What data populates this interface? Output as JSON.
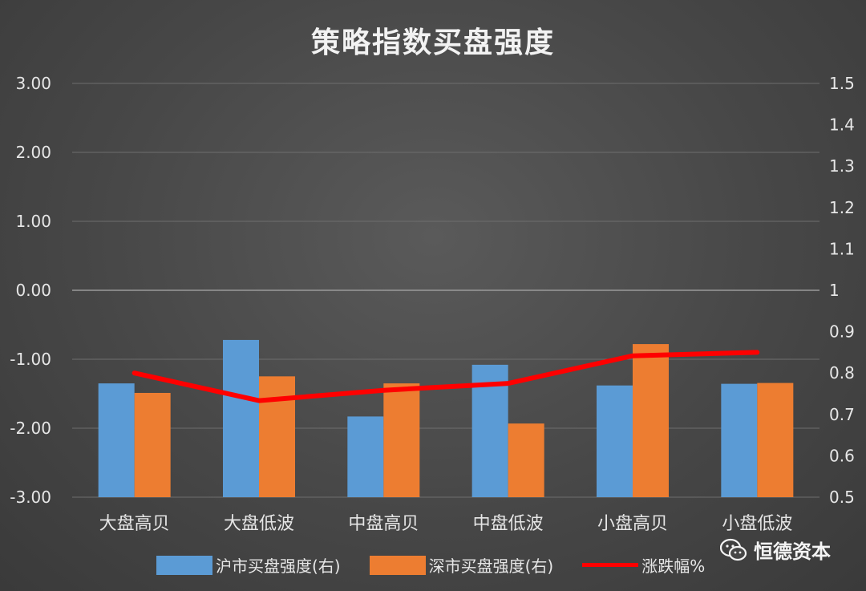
{
  "chart_data": {
    "type": "bar",
    "title": "策略指数买盘强度",
    "categories": [
      "大盘高贝",
      "大盘低波",
      "中盘高贝",
      "中盘低波",
      "小盘高贝",
      "小盘低波"
    ],
    "left_axis": {
      "ylim": [
        -3,
        3
      ],
      "ticks": [
        "3.00",
        "2.00",
        "1.00",
        "0.00",
        "-1.00",
        "-2.00",
        "-3.00"
      ]
    },
    "right_axis": {
      "ylim": [
        0.5,
        1.5
      ],
      "ticks": [
        "1.5",
        "1.4",
        "1.3",
        "1.2",
        "1.1",
        "1",
        "0.9",
        "0.8",
        "0.7",
        "0.6",
        "0.5"
      ]
    },
    "grid": true,
    "legend_position": "bottom",
    "series": [
      {
        "name": "沪市买盘强度(右)",
        "type": "bar",
        "axis": "right",
        "color": "#5b9bd5",
        "values": [
          0.775,
          0.88,
          0.695,
          0.82,
          0.77,
          0.774
        ]
      },
      {
        "name": "深市买盘强度(右)",
        "type": "bar",
        "axis": "right",
        "color": "#ed7d31",
        "values": [
          0.752,
          0.792,
          0.775,
          0.678,
          0.87,
          0.776
        ]
      },
      {
        "name": "涨跌幅%",
        "type": "line",
        "axis": "left",
        "color": "#ff0000",
        "values": [
          -1.2,
          -1.6,
          -1.45,
          -1.35,
          -0.95,
          -0.9
        ]
      }
    ]
  },
  "watermark": {
    "text": "恒德资本",
    "icon": "wechat-icon"
  }
}
